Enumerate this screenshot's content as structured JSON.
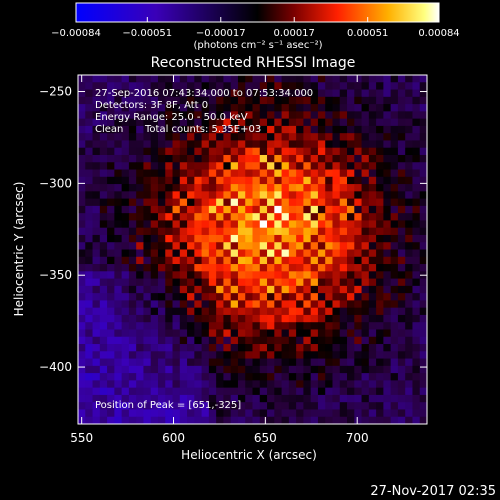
{
  "colorbar": {
    "tick_labels": [
      "-0.00084",
      "-0.00051",
      "-0.00017",
      "0.00017",
      "0.00051",
      "0.00084"
    ],
    "tick_values": [
      -0.00084,
      -0.00051,
      -0.00017,
      0.00017,
      0.00051,
      0.00084
    ],
    "range": [
      -0.00084,
      0.00084
    ],
    "units": "(photons cm⁻² s⁻¹ asec⁻²)",
    "colors": [
      "#0000ff",
      "#3a00b8",
      "#000000",
      "#7a0000",
      "#ff2000",
      "#ffb000",
      "#ffff80",
      "#ffffff"
    ]
  },
  "footer": {
    "timestamp": "27-Nov-2017 02:35"
  },
  "chart_data": {
    "type": "heatmap",
    "title": "Reconstructed RHESSI Image",
    "xlabel": "Heliocentric X (arcsec)",
    "ylabel": "Heliocentric Y (arcsec)",
    "xlim": [
      548,
      738
    ],
    "ylim": [
      -431,
      -241
    ],
    "x_ticks": [
      550,
      600,
      650,
      700
    ],
    "y_ticks": [
      -250,
      -300,
      -350,
      -400
    ],
    "x_tick_labels": [
      "550",
      "600",
      "650",
      "700"
    ],
    "y_tick_labels": [
      "-250",
      "-300",
      "-350",
      "-400"
    ],
    "annotations": [
      "27-Sep-2016 07:43:34.000 to 07:53:34.000",
      "Detectors: 3F 8F, Att 0",
      "Energy Range: 25.0 - 50.0 keV",
      "Clean",
      "Total counts: 5.35E+03",
      "Position of Peak = [651,-325]"
    ],
    "peak": [
      651,
      -325
    ],
    "colormap": "RHESSI red-temperature"
  }
}
